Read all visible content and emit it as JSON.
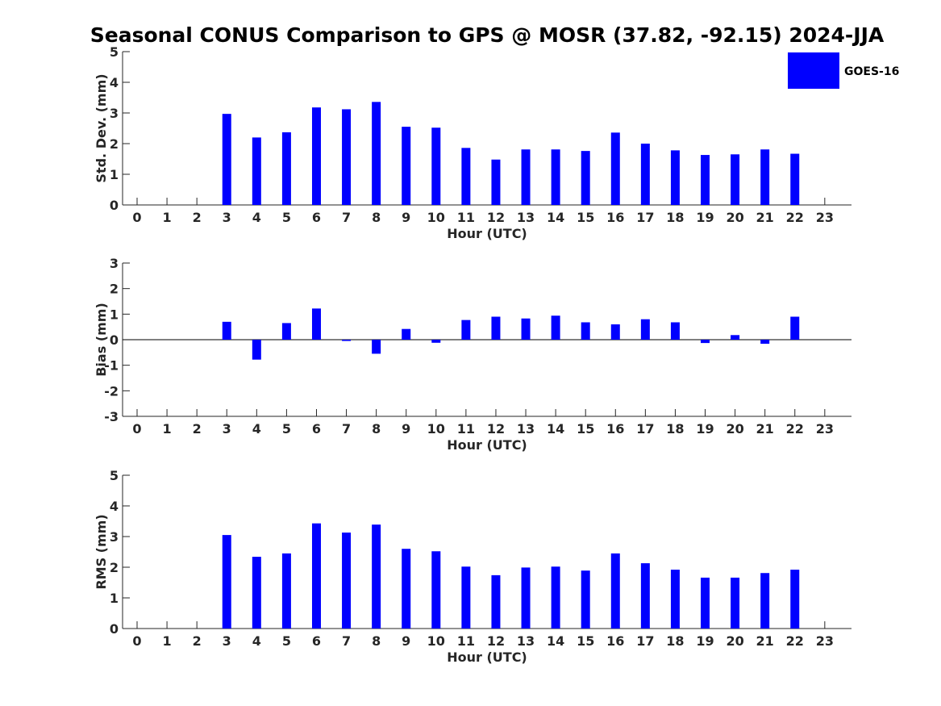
{
  "figure": {
    "title": "Seasonal CONUS Comparison to GPS @ MOSR (37.82, -92.15) 2024-JJA",
    "legend": {
      "label": "GOES-16",
      "color": "#0000ff",
      "placement": "top-right"
    },
    "bar_color": "#0000ff"
  },
  "chart_data": [
    {
      "type": "bar",
      "title": "Seasonal CONUS Comparison to GPS @ MOSR (37.82, -92.15) 2024-JJA",
      "xlabel": "Hour (UTC)",
      "ylabel": "Std. Dev. (mm)",
      "ylim": [
        0,
        5
      ],
      "yticks": [
        0,
        1,
        2,
        3,
        4,
        5
      ],
      "grid": false,
      "categories": [
        0,
        1,
        2,
        3,
        4,
        5,
        6,
        7,
        8,
        9,
        10,
        11,
        12,
        13,
        14,
        15,
        16,
        17,
        18,
        19,
        20,
        21,
        22,
        23
      ],
      "series": [
        {
          "name": "GOES-16",
          "values": [
            null,
            null,
            null,
            2.97,
            2.2,
            2.37,
            3.18,
            3.12,
            3.36,
            2.55,
            2.52,
            1.86,
            1.48,
            1.81,
            1.81,
            1.76,
            2.36,
            2.0,
            1.78,
            1.63,
            1.65,
            1.81,
            1.67,
            null
          ]
        }
      ]
    },
    {
      "type": "bar",
      "xlabel": "Hour (UTC)",
      "ylabel": "Bias (mm)",
      "ylim": [
        -3,
        3
      ],
      "yticks": [
        -3,
        -2,
        -1,
        0,
        1,
        2,
        3
      ],
      "grid": false,
      "categories": [
        0,
        1,
        2,
        3,
        4,
        5,
        6,
        7,
        8,
        9,
        10,
        11,
        12,
        13,
        14,
        15,
        16,
        17,
        18,
        19,
        20,
        21,
        22,
        23
      ],
      "series": [
        {
          "name": "GOES-16",
          "values": [
            null,
            null,
            null,
            0.7,
            -0.78,
            0.65,
            1.22,
            -0.05,
            -0.55,
            0.42,
            -0.12,
            0.77,
            0.9,
            0.83,
            0.94,
            0.68,
            0.6,
            0.8,
            0.68,
            -0.13,
            0.18,
            -0.16,
            0.9,
            null
          ]
        }
      ]
    },
    {
      "type": "bar",
      "xlabel": "Hour (UTC)",
      "ylabel": "RMS (mm)",
      "ylim": [
        0,
        5
      ],
      "yticks": [
        0,
        1,
        2,
        3,
        4,
        5
      ],
      "grid": false,
      "categories": [
        0,
        1,
        2,
        3,
        4,
        5,
        6,
        7,
        8,
        9,
        10,
        11,
        12,
        13,
        14,
        15,
        16,
        17,
        18,
        19,
        20,
        21,
        22,
        23
      ],
      "series": [
        {
          "name": "GOES-16",
          "values": [
            null,
            null,
            null,
            3.05,
            2.34,
            2.45,
            3.43,
            3.13,
            3.39,
            2.6,
            2.52,
            2.02,
            1.74,
            1.99,
            2.02,
            1.89,
            2.45,
            2.13,
            1.92,
            1.66,
            1.66,
            1.81,
            1.92,
            null
          ]
        }
      ]
    }
  ]
}
